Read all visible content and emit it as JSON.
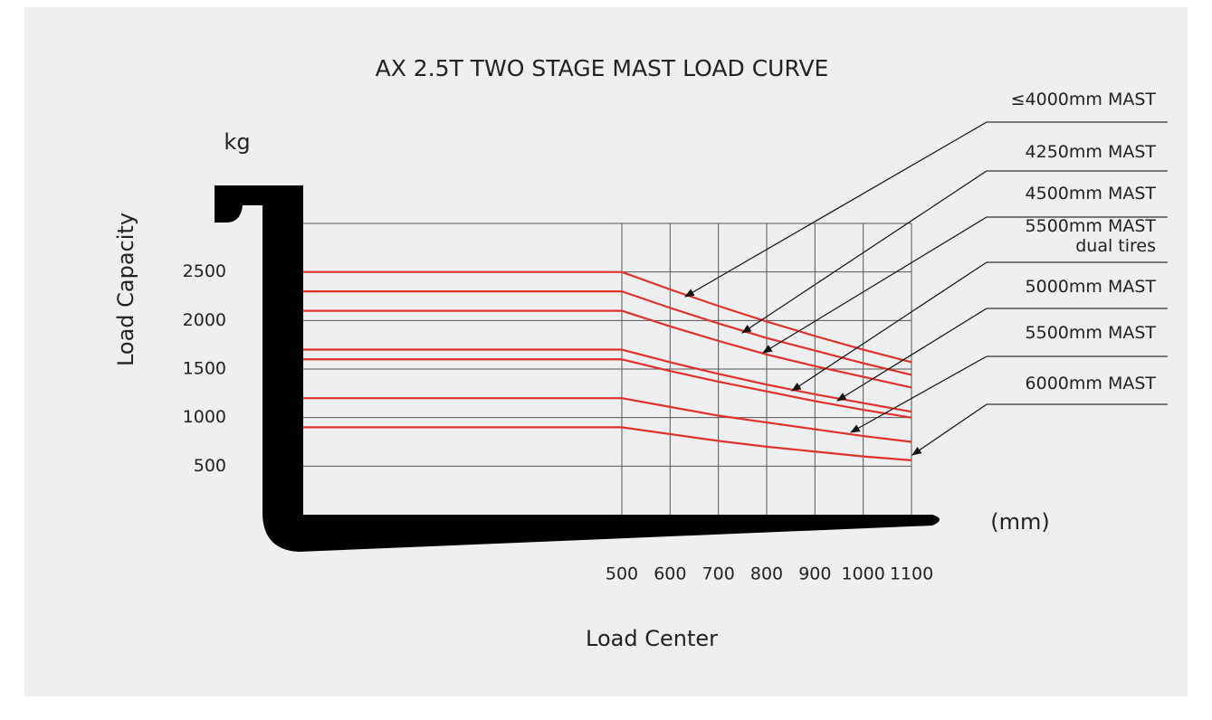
{
  "chart_data": {
    "type": "line",
    "title": "AX 2.5T TWO STAGE MAST LOAD CURVE",
    "y_unit": "kg",
    "y_label": "Load Capacity",
    "x_unit": "(mm)",
    "x_label": "Load Center",
    "x": [
      500,
      600,
      700,
      800,
      900,
      1000,
      1100
    ],
    "series": [
      {
        "name": "≤4000mm  MAST",
        "color": "#e0312a",
        "values": [
          2500,
          2320,
          2150,
          1990,
          1840,
          1700,
          1570
        ]
      },
      {
        "name": "4250mm  MAST",
        "color": "#e0312a",
        "values": [
          2300,
          2130,
          1970,
          1820,
          1690,
          1560,
          1440
        ]
      },
      {
        "name": "4500mm  MAST",
        "color": "#e0312a",
        "values": [
          2100,
          1940,
          1790,
          1650,
          1530,
          1420,
          1310
        ]
      },
      {
        "name": "5500mm  MAST\ndual tires",
        "color": "#e0312a",
        "values": [
          1700,
          1570,
          1450,
          1340,
          1240,
          1150,
          1060
        ]
      },
      {
        "name": "5000mm  MAST",
        "color": "#e0312a",
        "values": [
          1600,
          1480,
          1370,
          1270,
          1170,
          1080,
          1000
        ]
      },
      {
        "name": "5500mm  MAST",
        "color": "#e0312a",
        "values": [
          1200,
          1110,
          1020,
          950,
          880,
          810,
          750
        ]
      },
      {
        "name": "6000mm  MAST",
        "color": "#e0312a",
        "values": [
          900,
          830,
          760,
          700,
          650,
          600,
          560
        ]
      }
    ],
    "xlim": [
      500,
      1100
    ],
    "xticks": [
      500,
      600,
      700,
      800,
      900,
      1000,
      1100
    ],
    "ylim": [
      0,
      3000
    ],
    "yticks": [
      500,
      1000,
      1500,
      2000,
      2500
    ],
    "grid": true
  }
}
